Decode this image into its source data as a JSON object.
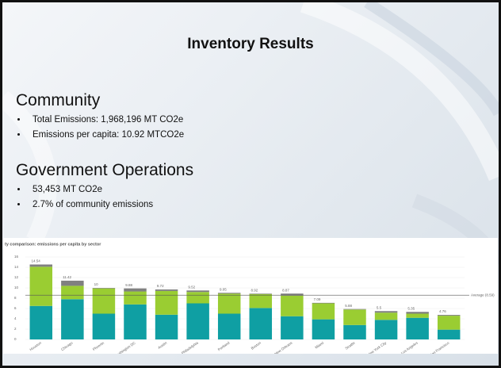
{
  "title": "Inventory Results",
  "community": {
    "heading": "Community",
    "bullets": [
      "Total Emissions: 1,968,196 MT CO2e",
      "Emissions per capita: 10.92 MTCO2e"
    ]
  },
  "government": {
    "heading": "Government Operations",
    "bullets": [
      "53,453 MT CO2e",
      "2.7% of community emissions"
    ]
  },
  "chart_data": {
    "type": "stacked_bar",
    "title": "ty comparison: emissions per capita by sector",
    "categories": [
      "Houston",
      "Chicago",
      "Phoenix",
      "Washington DC",
      "Austin",
      "Philadelphia",
      "Portland",
      "Boston",
      "New Orleans",
      "Miami",
      "Seattle",
      "New York City",
      "Los Angeles",
      "San Francisco"
    ],
    "series": [
      {
        "color": "#0f9fa3",
        "values": [
          6.5,
          7.8,
          5.0,
          6.8,
          4.8,
          7.0,
          5.0,
          6.1,
          4.5,
          3.9,
          2.8,
          3.8,
          4.2,
          1.9
        ]
      },
      {
        "color": "#9acd32",
        "values": [
          7.6,
          2.6,
          4.9,
          2.5,
          4.6,
          2.2,
          3.9,
          2.7,
          4.0,
          3.1,
          3.0,
          1.4,
          0.8,
          2.7
        ]
      },
      {
        "color": "#808080",
        "values": [
          0.44,
          1.0,
          0.1,
          0.6,
          0.3,
          0.3,
          0.15,
          0.1,
          0.4,
          0.1,
          0.1,
          0.3,
          0.35,
          0.16
        ]
      }
    ],
    "totals": [
      14.54,
      11.42,
      10,
      9.88,
      9.72,
      9.52,
      9.05,
      8.92,
      8.87,
      7.09,
      5.88,
      5.5,
      5.35,
      4.76
    ],
    "average": {
      "value": 8.59,
      "label": "Average (8.59)"
    },
    "ylim": [
      0,
      16
    ],
    "yticks": [
      0,
      2,
      4,
      6,
      8,
      10,
      12,
      14,
      16
    ],
    "grid": true
  }
}
